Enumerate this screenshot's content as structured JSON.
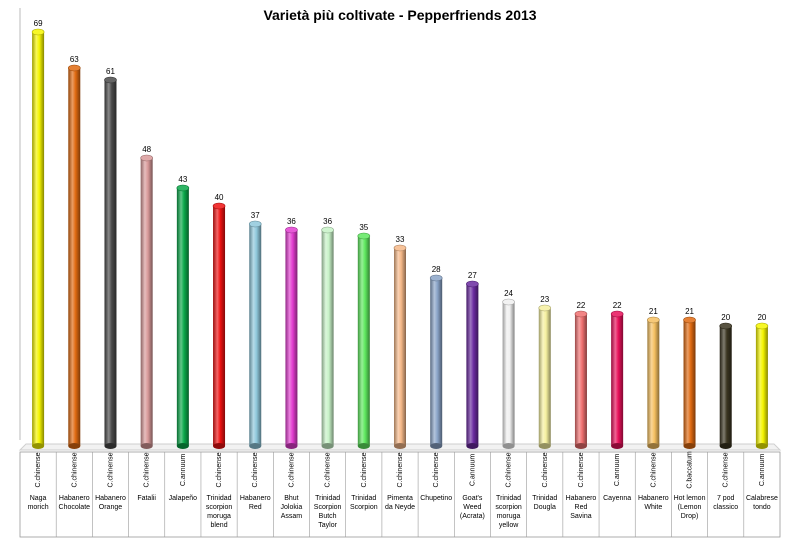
{
  "chart_data": {
    "type": "bar",
    "title": "Varietà più coltivate - Pepperfriends 2013",
    "xlabel": "",
    "ylabel": "",
    "ylim": [
      0,
      70
    ],
    "grid": false,
    "legend": "none",
    "categories": [
      {
        "name": "Naga morich",
        "species": "C.chinense",
        "value": 69,
        "color": "#f5f500"
      },
      {
        "name": "Habanero Chocolate",
        "species": "C.chinense",
        "value": 63,
        "color": "#e06a10"
      },
      {
        "name": "Habanero Orange",
        "species": "C.chinense",
        "value": 61,
        "color": "#4a4a4a"
      },
      {
        "name": "Fatalii",
        "species": "C.chinense",
        "value": 48,
        "color": "#d99a9a"
      },
      {
        "name": "Jalapeño",
        "species": "C.annuum",
        "value": 43,
        "color": "#0aa84a"
      },
      {
        "name": "Trinidad scorpion moruga blend",
        "species": "C.chinense",
        "value": 40,
        "color": "#ee1111"
      },
      {
        "name": "Habanero Red",
        "species": "C.chinense",
        "value": 37,
        "color": "#8fc8dc"
      },
      {
        "name": "Bhut Jolokia Assam",
        "species": "C.chinense",
        "value": 36,
        "color": "#e23dd0"
      },
      {
        "name": "Trinidad Scorpion Butch Taylor",
        "species": "C.chinense",
        "value": 36,
        "color": "#c7f2c7"
      },
      {
        "name": "Trinidad Scorpion",
        "species": "C.chinense",
        "value": 35,
        "color": "#5fe85f"
      },
      {
        "name": "Pimenta da Neyde",
        "species": "C.chinense",
        "value": 33,
        "color": "#f5b888"
      },
      {
        "name": "Chupetino",
        "species": "C.chinense",
        "value": 28,
        "color": "#8aa4c8"
      },
      {
        "name": "Goat's Weed (Acrata)",
        "species": "C.annuum",
        "value": 27,
        "color": "#6a2aa0"
      },
      {
        "name": "Trinidad scorpion moruga yellow",
        "species": "C.chinense",
        "value": 24,
        "color": "#f0f0f0"
      },
      {
        "name": "Trinidad Dougla",
        "species": "C.chinense",
        "value": 23,
        "color": "#f5f0a0"
      },
      {
        "name": "Habanero Red Savina",
        "species": "C.chinense",
        "value": 22,
        "color": "#f07070"
      },
      {
        "name": "Cayenna",
        "species": "C.annuum",
        "value": 22,
        "color": "#e8105a"
      },
      {
        "name": "Habanero White",
        "species": "C.chinense",
        "value": 21,
        "color": "#f5c060"
      },
      {
        "name": "Hot lemon (Lemon Drop)",
        "species": "C.baccatum",
        "value": 21,
        "color": "#e06a10"
      },
      {
        "name": "7 pod classico",
        "species": "C.chinense",
        "value": 20,
        "color": "#3a3520"
      },
      {
        "name": "Calabrese tondo",
        "species": "C.annuum",
        "value": 20,
        "color": "#f5f500"
      }
    ]
  }
}
